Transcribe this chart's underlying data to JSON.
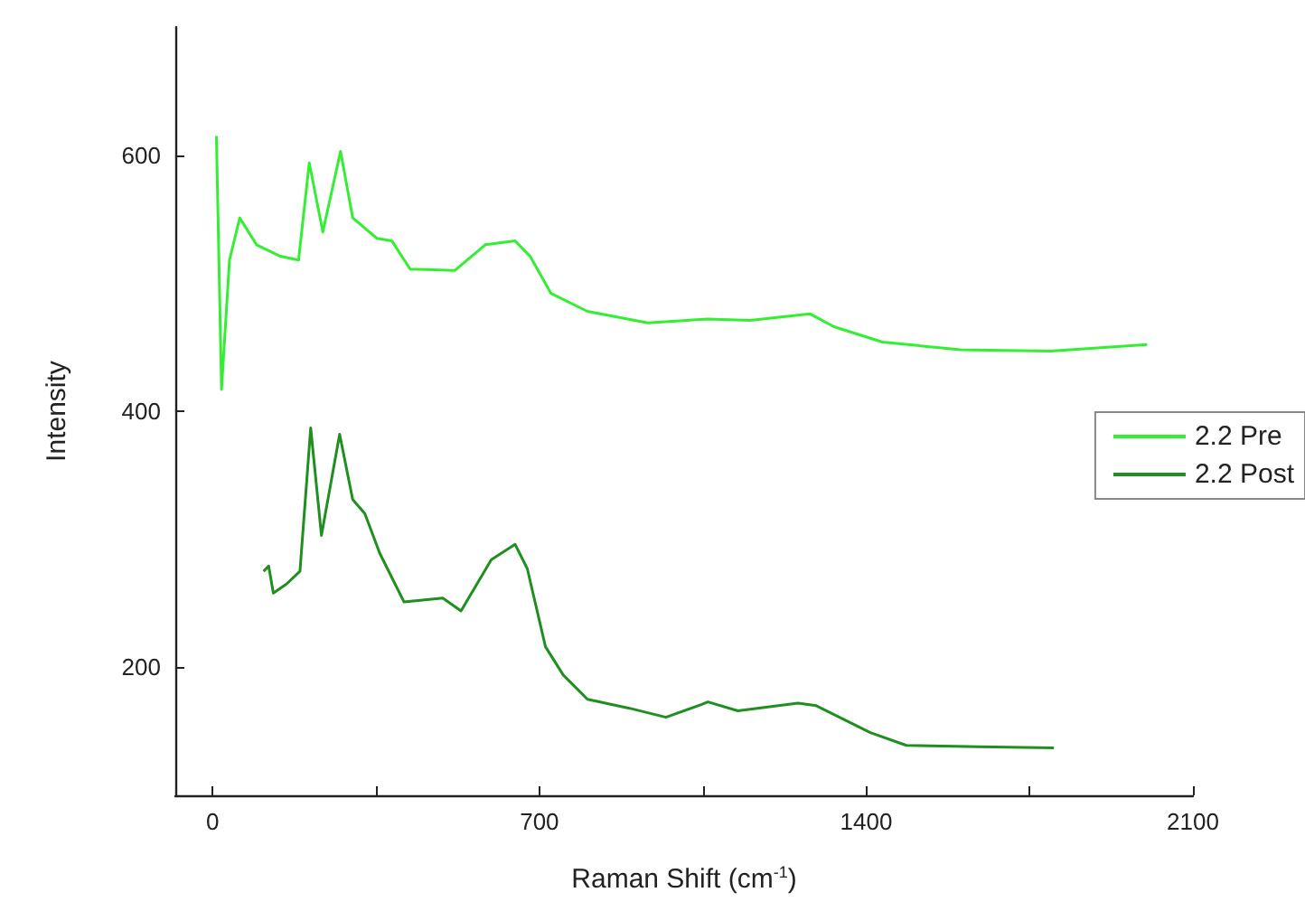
{
  "chart_data": {
    "type": "line",
    "xlabel": "Raman Shift (cm$^{-1}$)",
    "ylabel": "Intensity",
    "xlim": [
      -80,
      2100
    ],
    "ylim": [
      100,
      700
    ],
    "xticks": [
      0,
      {
        "value": 350,
        "label": null
      },
      700,
      {
        "value": 1050,
        "label": null
      },
      1400,
      {
        "value": 1750,
        "label": null
      },
      2100
    ],
    "yticks": [
      200,
      400,
      600
    ],
    "grid": false,
    "legend": "right",
    "marker": "none",
    "line_style": "solid",
    "series": [
      {
        "name": "2.2 Pre",
        "color": "#33ee33",
        "x": [
          8,
          19,
          36,
          58,
          94,
          145,
          184,
          207,
          236,
          274,
          300,
          352,
          384,
          423,
          519,
          584,
          648,
          680,
          725,
          803,
          932,
          1061,
          1151,
          1280,
          1331,
          1435,
          1602,
          1795,
          2002
        ],
        "values": [
          615,
          417,
          518,
          551,
          530,
          521,
          518,
          594,
          540,
          603,
          551,
          535,
          533,
          511,
          510,
          530,
          533,
          521,
          492,
          478,
          469,
          472,
          471,
          476,
          466,
          454,
          448,
          447,
          452
        ]
      },
      {
        "name": "2.2 Post",
        "color": "#1f8f1f",
        "x": [
          109,
          120,
          130,
          158,
          187,
          210,
          233,
          272,
          300,
          326,
          358,
          410,
          493,
          532,
          597,
          648,
          674,
          713,
          751,
          803,
          893,
          971,
          1048,
          1061,
          1125,
          1254,
          1293,
          1409,
          1486,
          1641,
          1802
        ],
        "values": [
          275,
          279,
          258,
          265,
          275,
          387,
          303,
          382,
          331,
          320,
          289,
          251,
          254,
          244,
          284,
          296,
          277,
          216,
          194,
          175,
          168,
          161,
          171,
          173,
          166,
          172,
          170,
          149,
          139,
          138,
          137
        ]
      }
    ]
  }
}
